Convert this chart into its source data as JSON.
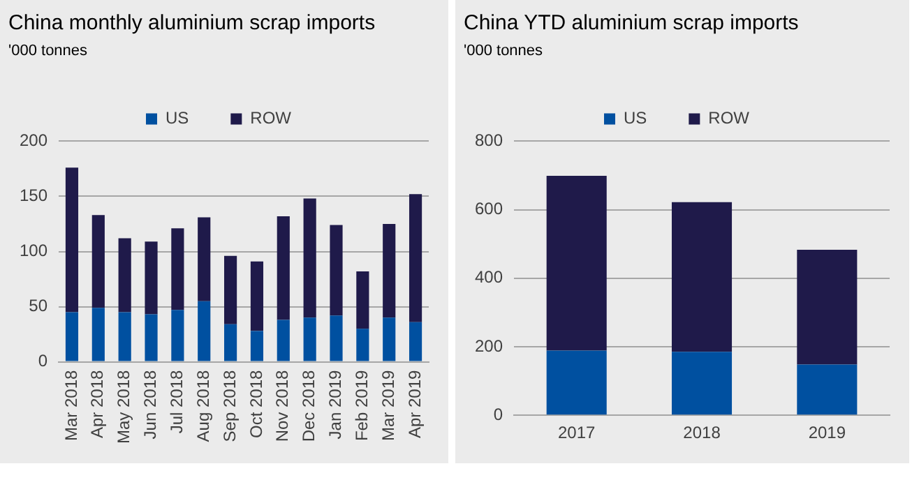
{
  "chart_data": [
    {
      "type": "bar",
      "title": "China monthly aluminium scrap imports",
      "subtitle": "'000 tonnes",
      "stacked": true,
      "grid": "y",
      "legend": "top",
      "categories": [
        "Mar 2018",
        "Apr 2018",
        "May 2018",
        "Jun 2018",
        "Jul 2018",
        "Aug 2018",
        "Sep 2018",
        "Oct 2018",
        "Nov 2018",
        "Dec 2018",
        "Jan 2019",
        "Feb 2019",
        "Mar 2019",
        "Apr 2019"
      ],
      "ylim": [
        0,
        200
      ],
      "yticks": [
        0,
        50,
        100,
        150,
        200
      ],
      "series": [
        {
          "name": "US",
          "color": "#0050a0",
          "values": [
            45,
            49,
            45,
            43,
            47,
            55,
            34,
            28,
            38,
            40,
            42,
            30,
            40,
            36
          ]
        },
        {
          "name": "ROW",
          "color": "#1f1a4a",
          "values": [
            131,
            84,
            67,
            66,
            74,
            76,
            62,
            63,
            94,
            108,
            82,
            52,
            85,
            116
          ]
        }
      ]
    },
    {
      "type": "bar",
      "title": "China YTD aluminium scrap imports",
      "subtitle": "'000 tonnes",
      "stacked": true,
      "grid": "y",
      "legend": "top",
      "categories": [
        "2017",
        "2018",
        "2019"
      ],
      "ylim": [
        0,
        800
      ],
      "yticks": [
        0,
        200,
        400,
        600,
        800
      ],
      "series": [
        {
          "name": "US",
          "color": "#0050a0",
          "values": [
            189,
            185,
            148
          ]
        },
        {
          "name": "ROW",
          "color": "#1f1a4a",
          "values": [
            510,
            437,
            335
          ]
        }
      ]
    }
  ]
}
